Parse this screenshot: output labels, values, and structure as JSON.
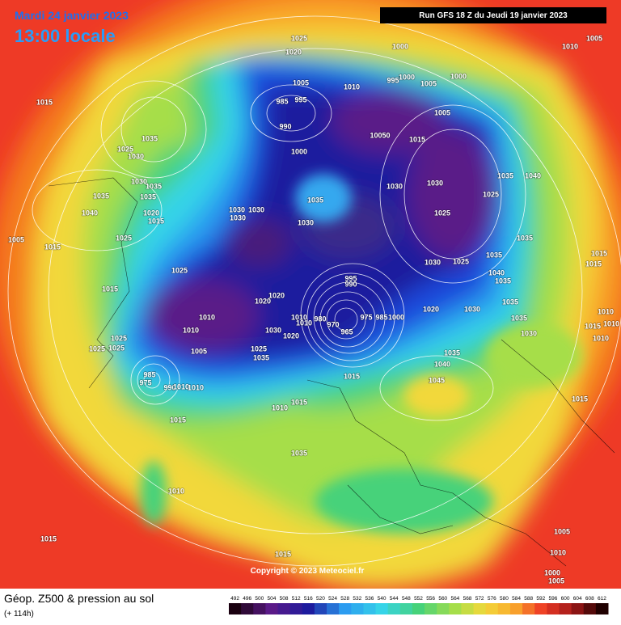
{
  "header": {
    "date": "Mardi 24 janvier 2023",
    "time": "13:00 locale",
    "run": "Run GFS 18 Z du Jeudi 19 janvier 2023"
  },
  "labels": [
    1025,
    1020,
    1000,
    1005,
    1010,
    1015,
    1005,
    1010,
    995,
    1000,
    1005,
    1000,
    985,
    995,
    990,
    1005,
    10050,
    1015,
    1035,
    1025,
    1030,
    1000,
    1030,
    1035,
    1035,
    1035,
    1035,
    1035,
    1040,
    1030,
    1030,
    1025,
    1040,
    1020,
    1015,
    1030,
    1030,
    1030,
    1030,
    1025,
    1005,
    1015,
    1025,
    1035,
    1030,
    1025,
    1035,
    1015,
    1015,
    1025,
    1040,
    1035,
    995,
    990,
    1015,
    1020,
    1020,
    1010,
    1010,
    1030,
    1020,
    1010,
    1010,
    980,
    970,
    965,
    975,
    985,
    1000,
    1020,
    1030,
    1035,
    1035,
    1010,
    1010,
    1015,
    1030,
    1010,
    1025,
    1025,
    1025,
    1005,
    1025,
    1035,
    1035,
    1040,
    1045,
    985,
    975,
    990,
    1010,
    1010,
    1015,
    1015,
    1010,
    1015,
    1015,
    1035,
    1010,
    1015,
    1015,
    1005,
    1010,
    1000,
    1005
  ],
  "copyright": "Copyright © 2023 Meteociel.fr",
  "legend": {
    "title": "Géop. Z500 & pression au sol",
    "lead": "(+ 114h)",
    "scale": [
      492,
      496,
      500,
      504,
      508,
      512,
      516,
      520,
      524,
      528,
      532,
      536,
      540,
      544,
      548,
      552,
      556,
      560,
      564,
      568,
      572,
      576,
      580,
      584,
      588,
      592,
      596,
      600,
      604,
      608,
      612
    ]
  }
}
